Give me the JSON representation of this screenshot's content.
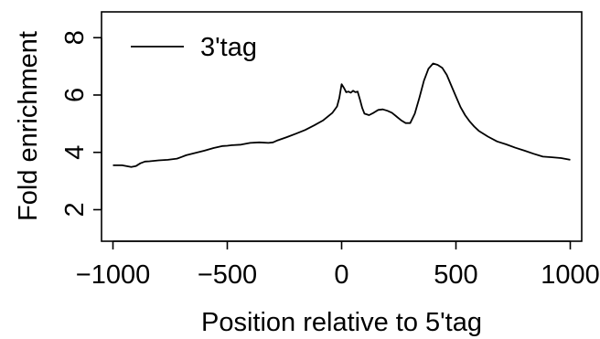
{
  "chart_data": {
    "type": "line",
    "title": "",
    "xlabel": "Position relative to 5'tag",
    "ylabel": "Fold enrichment",
    "xlim": [
      -1050,
      1050
    ],
    "ylim": [
      0.9,
      8.9
    ],
    "x_ticks": [
      -1000,
      -500,
      0,
      500,
      1000
    ],
    "x_tick_labels": [
      "−1000",
      "−500",
      "0",
      "500",
      "1000"
    ],
    "y_ticks": [
      2,
      4,
      6,
      8
    ],
    "y_tick_labels": [
      "2",
      "4",
      "6",
      "8"
    ],
    "grid": false,
    "legend_position": "top-left",
    "series": [
      {
        "name": "3'tag",
        "color": "#000000",
        "x": [
          -1000,
          -960,
          -920,
          -900,
          -880,
          -860,
          -840,
          -800,
          -760,
          -720,
          -700,
          -680,
          -640,
          -600,
          -560,
          -520,
          -500,
          -480,
          -440,
          -400,
          -360,
          -320,
          -300,
          -280,
          -240,
          -200,
          -160,
          -120,
          -80,
          -40,
          -20,
          -10,
          0,
          10,
          20,
          30,
          40,
          50,
          60,
          70,
          80,
          90,
          100,
          120,
          140,
          160,
          180,
          200,
          220,
          240,
          260,
          280,
          300,
          320,
          340,
          360,
          380,
          400,
          420,
          440,
          460,
          480,
          500,
          520,
          540,
          560,
          580,
          600,
          640,
          680,
          720,
          760,
          800,
          840,
          880,
          920,
          960,
          1000
        ],
        "y": [
          3.55,
          3.55,
          3.49,
          3.52,
          3.62,
          3.68,
          3.69,
          3.72,
          3.74,
          3.78,
          3.84,
          3.9,
          3.98,
          4.06,
          4.15,
          4.22,
          4.23,
          4.25,
          4.27,
          4.33,
          4.35,
          4.33,
          4.35,
          4.42,
          4.53,
          4.65,
          4.78,
          4.94,
          5.12,
          5.38,
          5.6,
          5.9,
          6.38,
          6.25,
          6.1,
          6.12,
          6.08,
          6.15,
          6.1,
          6.12,
          5.85,
          5.55,
          5.35,
          5.3,
          5.38,
          5.48,
          5.5,
          5.45,
          5.38,
          5.25,
          5.12,
          5.02,
          5.02,
          5.35,
          5.9,
          6.5,
          6.92,
          7.1,
          7.05,
          6.95,
          6.7,
          6.32,
          5.95,
          5.58,
          5.3,
          5.08,
          4.9,
          4.75,
          4.55,
          4.38,
          4.28,
          4.16,
          4.06,
          3.95,
          3.85,
          3.83,
          3.8,
          3.74
        ]
      }
    ]
  }
}
